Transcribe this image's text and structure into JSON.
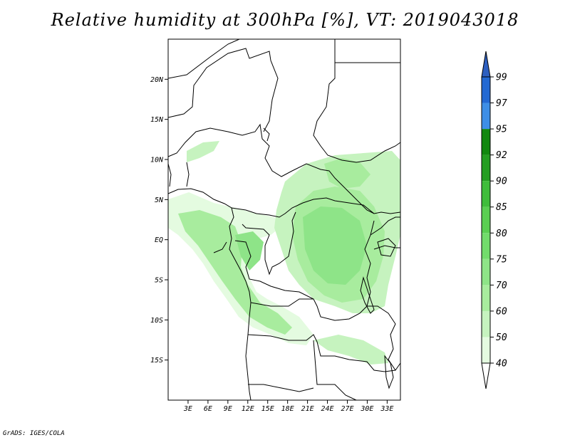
{
  "title": "Relative humidity at 300hPa [%], VT: 2019043018",
  "credit": "GrADS: IGES/COLA",
  "map": {
    "lon_range": [
      0,
      35
    ],
    "lat_range": [
      -20,
      25
    ],
    "lat_ticks": [
      {
        "value": 20,
        "label": "20N"
      },
      {
        "value": 15,
        "label": "15N"
      },
      {
        "value": 10,
        "label": "10N"
      },
      {
        "value": 5,
        "label": "5N"
      },
      {
        "value": 0,
        "label": "EQ"
      },
      {
        "value": -5,
        "label": "5S"
      },
      {
        "value": -10,
        "label": "10S"
      },
      {
        "value": -15,
        "label": "15S"
      }
    ],
    "lon_ticks": [
      {
        "value": 3,
        "label": "3E"
      },
      {
        "value": 6,
        "label": "6E"
      },
      {
        "value": 9,
        "label": "9E"
      },
      {
        "value": 12,
        "label": "12E"
      },
      {
        "value": 15,
        "label": "15E"
      },
      {
        "value": 18,
        "label": "18E"
      },
      {
        "value": 21,
        "label": "21E"
      },
      {
        "value": 24,
        "label": "24E"
      },
      {
        "value": 27,
        "label": "27E"
      },
      {
        "value": 30,
        "label": "30E"
      },
      {
        "value": 33,
        "label": "33E"
      }
    ]
  },
  "colorbar": {
    "levels": [
      {
        "label": "40",
        "color": "#ffffff"
      },
      {
        "label": "50",
        "color": "#e4fbe0"
      },
      {
        "label": "60",
        "color": "#c6f3bf"
      },
      {
        "label": "70",
        "color": "#a8ec9e"
      },
      {
        "label": "75",
        "color": "#8ee488"
      },
      {
        "label": "80",
        "color": "#72dc6c"
      },
      {
        "label": "85",
        "color": "#5acf52"
      },
      {
        "label": "90",
        "color": "#3fbd3b"
      },
      {
        "label": "92",
        "color": "#249e22"
      },
      {
        "label": "95",
        "color": "#11880f"
      },
      {
        "label": "97",
        "color": "#3e8ee6"
      },
      {
        "label": "99",
        "color": "#2369d3"
      }
    ],
    "top_triangle_color": "#2d5fc0"
  }
}
